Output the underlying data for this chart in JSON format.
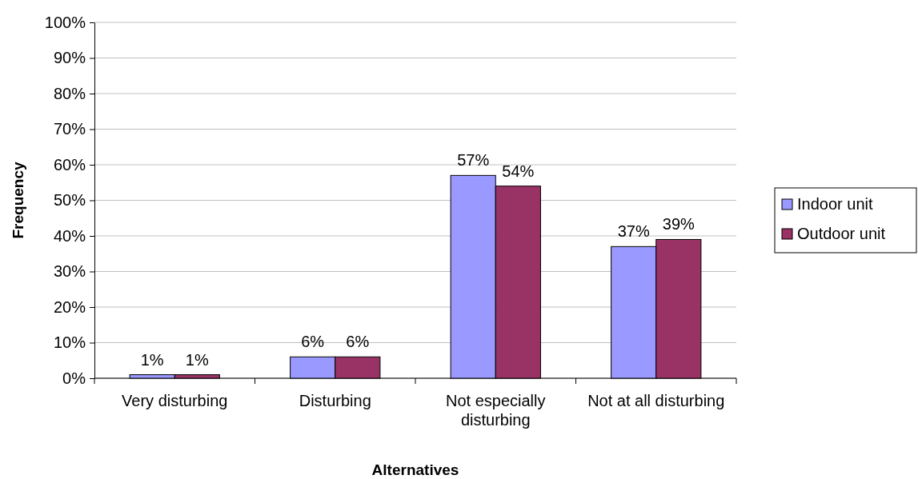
{
  "chart_data": {
    "type": "bar",
    "xlabel": "Alternatives",
    "ylabel": "Frequency",
    "categories": [
      "Very disturbing",
      "Disturbing",
      "Not especially disturbing",
      "Not at all disturbing"
    ],
    "series": [
      {
        "name": "Indoor unit",
        "color": "#9999ff",
        "values": [
          1,
          6,
          57,
          37
        ],
        "value_labels": [
          "1%",
          "6%",
          "57%",
          "37%"
        ]
      },
      {
        "name": "Outdoor unit",
        "color": "#993366",
        "values": [
          1,
          6,
          54,
          39
        ],
        "value_labels": [
          "1%",
          "6%",
          "54%",
          "39%"
        ]
      }
    ],
    "ylim": [
      0,
      100
    ],
    "yticks": [
      {
        "value": 0,
        "label": "0%"
      },
      {
        "value": 10,
        "label": "10%"
      },
      {
        "value": 20,
        "label": "20%"
      },
      {
        "value": 30,
        "label": "30%"
      },
      {
        "value": 40,
        "label": "40%"
      },
      {
        "value": 50,
        "label": "50%"
      },
      {
        "value": 60,
        "label": "60%"
      },
      {
        "value": 70,
        "label": "70%"
      },
      {
        "value": 80,
        "label": "80%"
      },
      {
        "value": 90,
        "label": "90%"
      },
      {
        "value": 100,
        "label": "100%"
      }
    ],
    "grid": "y",
    "legend": "right"
  }
}
